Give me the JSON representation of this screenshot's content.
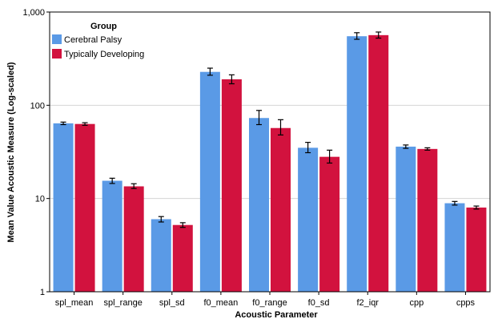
{
  "chart_data": {
    "type": "bar",
    "title": "",
    "xlabel": "Acoustic Parameter",
    "ylabel": "Mean Value Acoustic Measure (Log-scaled)",
    "yscale": "log",
    "ylim": [
      1,
      1000
    ],
    "yticks": [
      1,
      10,
      100,
      1000
    ],
    "ytick_labels": [
      "1",
      "10",
      "100",
      "1,000"
    ],
    "grid": "horizontal",
    "legend": {
      "title": "Group",
      "placement": "top-left"
    },
    "categories": [
      "spl_mean",
      "spl_range",
      "spl_sd",
      "f0_mean",
      "f0_range",
      "f0_sd",
      "f2_iqr",
      "cpp",
      "cpps"
    ],
    "series": [
      {
        "name": "Cerebral Palsy",
        "color": "#5A9AE6",
        "values": [
          64,
          15.5,
          6.0,
          228,
          73,
          35,
          550,
          36,
          8.9
        ],
        "error_low": [
          62,
          14.5,
          5.6,
          210,
          62,
          31,
          510,
          34.5,
          8.5
        ],
        "error_high": [
          66,
          16.5,
          6.4,
          250,
          88,
          40,
          600,
          37.5,
          9.3
        ]
      },
      {
        "name": "Typically Developing",
        "color": "#D2123E",
        "values": [
          63,
          13.5,
          5.2,
          190,
          57,
          28,
          565,
          34,
          8.0
        ],
        "error_low": [
          61,
          12.8,
          4.9,
          170,
          48,
          24,
          525,
          33,
          7.7
        ],
        "error_high": [
          65,
          14.4,
          5.5,
          212,
          70,
          33,
          610,
          35,
          8.3
        ]
      }
    ]
  }
}
